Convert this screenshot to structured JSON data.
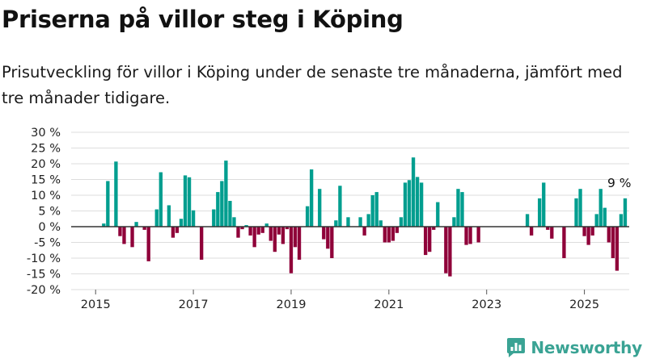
{
  "title": "Priserna på villor steg i Köping",
  "subtitle": "Prisutveckling för villor i Köping under de senaste tre månaderna, jämfört med tre månader tidigare.",
  "brand": {
    "name": "Newsworthy",
    "icon": "newsworthy-logo-icon"
  },
  "colors": {
    "positive": "#009e8f",
    "negative": "#8f0039",
    "grid": "#dddddd",
    "zero_line": "#333333"
  },
  "chart_data": {
    "type": "bar",
    "title": "",
    "xlabel": "",
    "ylabel": "",
    "unit": "%",
    "ylim": [
      -20,
      30
    ],
    "yticks": [
      30,
      25,
      20,
      15,
      10,
      5,
      0,
      -5,
      -10,
      -15,
      -20
    ],
    "ytick_labels": [
      "30 %",
      "25 %",
      "20 %",
      "15 %",
      "10 %",
      "5 %",
      "0 %",
      "-5 %",
      "-10 %",
      "-15 %",
      "-20 %"
    ],
    "xlim": [
      "2014-07",
      "2025-12"
    ],
    "xticks": [
      "2015-01",
      "2017-01",
      "2019-01",
      "2021-01",
      "2023-01",
      "2025-01"
    ],
    "xtick_labels": [
      "2015",
      "2017",
      "2019",
      "2021",
      "2023",
      "2025"
    ],
    "grid": true,
    "annotation": {
      "x": "2025-06",
      "text": "9 %"
    },
    "series": [
      {
        "points": [
          {
            "x": "2015-01",
            "y": 0
          },
          {
            "x": "2015-02",
            "y": 0
          },
          {
            "x": "2015-03",
            "y": 1
          },
          {
            "x": "2015-04",
            "y": 14.5
          },
          {
            "x": "2015-05",
            "y": 0
          },
          {
            "x": "2015-06",
            "y": 20.7
          },
          {
            "x": "2015-07",
            "y": -3
          },
          {
            "x": "2015-08",
            "y": -5.5
          },
          {
            "x": "2015-09",
            "y": 0
          },
          {
            "x": "2015-10",
            "y": -6.5
          },
          {
            "x": "2015-11",
            "y": 1.5
          },
          {
            "x": "2015-12",
            "y": 0
          },
          {
            "x": "2016-01",
            "y": -1
          },
          {
            "x": "2016-02",
            "y": -11
          },
          {
            "x": "2016-03",
            "y": 0
          },
          {
            "x": "2016-04",
            "y": 5.5
          },
          {
            "x": "2016-05",
            "y": 17.3
          },
          {
            "x": "2016-06",
            "y": 0
          },
          {
            "x": "2016-07",
            "y": 6.8
          },
          {
            "x": "2016-08",
            "y": -3.5
          },
          {
            "x": "2016-09",
            "y": -2
          },
          {
            "x": "2016-10",
            "y": 2.5
          },
          {
            "x": "2016-11",
            "y": 16.3
          },
          {
            "x": "2016-12",
            "y": 15.7
          },
          {
            "x": "2017-01",
            "y": 5.2
          },
          {
            "x": "2017-02",
            "y": 0
          },
          {
            "x": "2017-03",
            "y": -10.5
          },
          {
            "x": "2017-04",
            "y": 0
          },
          {
            "x": "2017-05",
            "y": 0
          },
          {
            "x": "2017-06",
            "y": 5.5
          },
          {
            "x": "2017-07",
            "y": 11
          },
          {
            "x": "2017-08",
            "y": 14.5
          },
          {
            "x": "2017-09",
            "y": 21
          },
          {
            "x": "2017-10",
            "y": 8.2
          },
          {
            "x": "2017-11",
            "y": 3
          },
          {
            "x": "2017-12",
            "y": -3.5
          },
          {
            "x": "2018-01",
            "y": -0.8
          },
          {
            "x": "2018-02",
            "y": 0.5
          },
          {
            "x": "2018-03",
            "y": -2.8
          },
          {
            "x": "2018-04",
            "y": -6.5
          },
          {
            "x": "2018-05",
            "y": -2.5
          },
          {
            "x": "2018-06",
            "y": -2
          },
          {
            "x": "2018-07",
            "y": 1
          },
          {
            "x": "2018-08",
            "y": -4.5
          },
          {
            "x": "2018-09",
            "y": -8
          },
          {
            "x": "2018-10",
            "y": -2.5
          },
          {
            "x": "2018-11",
            "y": -5.5
          },
          {
            "x": "2018-12",
            "y": -0.8
          },
          {
            "x": "2019-01",
            "y": -14.8
          },
          {
            "x": "2019-02",
            "y": -6.5
          },
          {
            "x": "2019-03",
            "y": -10.5
          },
          {
            "x": "2019-04",
            "y": 0
          },
          {
            "x": "2019-05",
            "y": 6.5
          },
          {
            "x": "2019-06",
            "y": 18.2
          },
          {
            "x": "2019-07",
            "y": 0
          },
          {
            "x": "2019-08",
            "y": 12
          },
          {
            "x": "2019-09",
            "y": -4
          },
          {
            "x": "2019-10",
            "y": -7
          },
          {
            "x": "2019-11",
            "y": -10
          },
          {
            "x": "2019-12",
            "y": 2
          },
          {
            "x": "2020-01",
            "y": 13
          },
          {
            "x": "2020-02",
            "y": 0
          },
          {
            "x": "2020-03",
            "y": 3
          },
          {
            "x": "2020-04",
            "y": 0
          },
          {
            "x": "2020-05",
            "y": 0
          },
          {
            "x": "2020-06",
            "y": 3
          },
          {
            "x": "2020-07",
            "y": -2.8
          },
          {
            "x": "2020-08",
            "y": 4
          },
          {
            "x": "2020-09",
            "y": 10
          },
          {
            "x": "2020-10",
            "y": 11
          },
          {
            "x": "2020-11",
            "y": 2
          },
          {
            "x": "2020-12",
            "y": -5
          },
          {
            "x": "2021-01",
            "y": -5
          },
          {
            "x": "2021-02",
            "y": -4.5
          },
          {
            "x": "2021-03",
            "y": -2
          },
          {
            "x": "2021-04",
            "y": 3
          },
          {
            "x": "2021-05",
            "y": 14
          },
          {
            "x": "2021-06",
            "y": 14.8
          },
          {
            "x": "2021-07",
            "y": 22
          },
          {
            "x": "2021-08",
            "y": 15.8
          },
          {
            "x": "2021-09",
            "y": 14
          },
          {
            "x": "2021-10",
            "y": -9
          },
          {
            "x": "2021-11",
            "y": -8
          },
          {
            "x": "2021-12",
            "y": -1
          },
          {
            "x": "2022-01",
            "y": 7.8
          },
          {
            "x": "2022-02",
            "y": 0
          },
          {
            "x": "2022-03",
            "y": -14.8
          },
          {
            "x": "2022-04",
            "y": -15.8
          },
          {
            "x": "2022-05",
            "y": 3
          },
          {
            "x": "2022-06",
            "y": 12
          },
          {
            "x": "2022-07",
            "y": 11
          },
          {
            "x": "2022-08",
            "y": -5.8
          },
          {
            "x": "2022-09",
            "y": -5.5
          },
          {
            "x": "2022-10",
            "y": 0
          },
          {
            "x": "2022-11",
            "y": -5
          },
          {
            "x": "2022-12",
            "y": 0
          },
          {
            "x": "2023-01",
            "y": 0
          },
          {
            "x": "2023-02",
            "y": 0
          },
          {
            "x": "2023-03",
            "y": 0
          },
          {
            "x": "2023-04",
            "y": 0
          },
          {
            "x": "2023-05",
            "y": 0
          },
          {
            "x": "2023-06",
            "y": 0
          },
          {
            "x": "2023-07",
            "y": 0
          },
          {
            "x": "2023-08",
            "y": 0
          },
          {
            "x": "2023-09",
            "y": 0
          },
          {
            "x": "2023-10",
            "y": 0
          },
          {
            "x": "2023-11",
            "y": 4
          },
          {
            "x": "2023-12",
            "y": -2.8
          },
          {
            "x": "2024-01",
            "y": 0
          },
          {
            "x": "2024-02",
            "y": 9
          },
          {
            "x": "2024-03",
            "y": 14
          },
          {
            "x": "2024-04",
            "y": -1
          },
          {
            "x": "2024-05",
            "y": -3.8
          },
          {
            "x": "2024-06",
            "y": 0
          },
          {
            "x": "2024-07",
            "y": 0
          },
          {
            "x": "2024-08",
            "y": -10
          },
          {
            "x": "2024-09",
            "y": 0
          },
          {
            "x": "2024-10",
            "y": 0
          },
          {
            "x": "2024-11",
            "y": 9
          },
          {
            "x": "2024-12",
            "y": 12
          },
          {
            "x": "2025-01",
            "y": -3
          },
          {
            "x": "2025-02",
            "y": -5.8
          },
          {
            "x": "2025-03",
            "y": -2.8
          },
          {
            "x": "2025-04",
            "y": 4
          },
          {
            "x": "2025-05",
            "y": 12
          },
          {
            "x": "2025-06",
            "y": 6
          },
          {
            "x": "2025-07",
            "y": -5
          },
          {
            "x": "2025-08",
            "y": -10
          },
          {
            "x": "2025-09",
            "y": -14
          },
          {
            "x": "2025-10",
            "y": 4
          },
          {
            "x": "2025-11",
            "y": 9
          }
        ]
      }
    ]
  }
}
